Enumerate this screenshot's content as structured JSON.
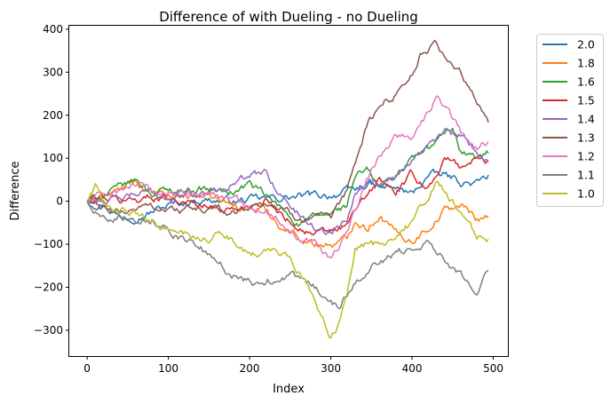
{
  "chart_data": {
    "type": "line",
    "title": "Difference of with Dueling - no Dueling",
    "xlabel": "Index",
    "ylabel": "Difference",
    "xlim": [
      -22,
      518
    ],
    "ylim": [
      -360,
      408
    ],
    "xticks": [
      0,
      100,
      200,
      300,
      400,
      500
    ],
    "yticks": [
      -300,
      -200,
      -100,
      0,
      100,
      200,
      300,
      400
    ],
    "grid": false,
    "legend_position": "outside-right",
    "series": [
      {
        "name": "2.0",
        "color": "#1f77b4",
        "x": [
          0,
          20,
          40,
          70,
          100,
          140,
          180,
          220,
          260,
          300,
          330,
          345,
          360,
          380,
          400,
          420,
          440,
          460,
          480,
          495
        ],
        "y": [
          0,
          -5,
          -35,
          -30,
          -10,
          5,
          0,
          5,
          10,
          15,
          25,
          40,
          30,
          30,
          15,
          60,
          60,
          45,
          40,
          58
        ]
      },
      {
        "name": "1.8",
        "color": "#ff7f0e",
        "x": [
          0,
          20,
          40,
          60,
          80,
          100,
          140,
          180,
          220,
          240,
          260,
          280,
          300,
          320,
          330,
          345,
          360,
          380,
          400,
          420,
          440,
          460,
          480,
          495
        ],
        "y": [
          0,
          10,
          25,
          45,
          15,
          10,
          15,
          -10,
          -20,
          -60,
          -80,
          -100,
          -100,
          -90,
          -40,
          -60,
          -30,
          -75,
          -90,
          -60,
          -20,
          -10,
          -40,
          -30
        ]
      },
      {
        "name": "1.6",
        "color": "#2ca02c",
        "x": [
          0,
          20,
          40,
          60,
          80,
          100,
          140,
          180,
          200,
          220,
          240,
          260,
          280,
          300,
          320,
          330,
          345,
          360,
          380,
          400,
          420,
          440,
          450,
          460,
          480,
          495
        ],
        "y": [
          0,
          15,
          30,
          50,
          20,
          25,
          30,
          20,
          40,
          10,
          -20,
          -50,
          -40,
          -30,
          -10,
          60,
          70,
          30,
          60,
          100,
          120,
          155,
          175,
          120,
          100,
          110
        ]
      },
      {
        "name": "1.5",
        "color": "#d62728",
        "x": [
          0,
          20,
          40,
          60,
          80,
          100,
          140,
          180,
          220,
          240,
          260,
          280,
          300,
          320,
          330,
          345,
          360,
          380,
          400,
          420,
          440,
          460,
          480,
          495
        ],
        "y": [
          0,
          10,
          0,
          5,
          10,
          10,
          -10,
          -20,
          5,
          -30,
          -60,
          -80,
          -70,
          -60,
          -20,
          10,
          50,
          20,
          60,
          30,
          100,
          80,
          100,
          85
        ]
      },
      {
        "name": "1.4",
        "color": "#9467bd",
        "x": [
          0,
          20,
          40,
          60,
          80,
          100,
          140,
          160,
          180,
          200,
          220,
          240,
          260,
          280,
          300,
          320,
          330,
          345,
          360,
          380,
          400,
          420,
          440,
          460,
          480,
          495
        ],
        "y": [
          0,
          5,
          0,
          15,
          20,
          10,
          15,
          30,
          45,
          55,
          70,
          10,
          -30,
          -60,
          -70,
          -40,
          30,
          55,
          40,
          60,
          100,
          130,
          160,
          150,
          110,
          90
        ]
      },
      {
        "name": "1.3",
        "color": "#8c564b",
        "x": [
          0,
          20,
          40,
          60,
          80,
          100,
          140,
          180,
          220,
          240,
          260,
          280,
          300,
          320,
          330,
          345,
          360,
          380,
          400,
          410,
          420,
          430,
          440,
          460,
          480,
          495
        ],
        "y": [
          0,
          -20,
          -30,
          -15,
          -10,
          -20,
          -20,
          -25,
          0,
          -20,
          -40,
          -30,
          -50,
          20,
          90,
          180,
          220,
          250,
          300,
          340,
          350,
          365,
          340,
          300,
          220,
          185
        ]
      },
      {
        "name": "1.2",
        "color": "#e377c2",
        "x": [
          0,
          20,
          40,
          60,
          80,
          100,
          140,
          180,
          220,
          240,
          260,
          280,
          300,
          320,
          330,
          345,
          360,
          380,
          400,
          420,
          430,
          440,
          460,
          480,
          495
        ],
        "y": [
          0,
          15,
          25,
          40,
          15,
          20,
          15,
          5,
          -20,
          -50,
          -80,
          -90,
          -130,
          -80,
          -20,
          50,
          100,
          160,
          150,
          200,
          240,
          220,
          160,
          120,
          140
        ]
      },
      {
        "name": "1.1",
        "color": "#7f7f7f",
        "x": [
          0,
          10,
          20,
          40,
          60,
          80,
          100,
          120,
          140,
          160,
          180,
          200,
          220,
          240,
          260,
          280,
          300,
          310,
          330,
          345,
          360,
          380,
          400,
          420,
          440,
          460,
          480,
          495
        ],
        "y": [
          0,
          -20,
          -40,
          -30,
          -40,
          -40,
          -60,
          -90,
          -110,
          -150,
          -170,
          -190,
          -190,
          -170,
          -180,
          -200,
          -230,
          -250,
          -180,
          -160,
          -140,
          -120,
          -110,
          -90,
          -130,
          -170,
          -200,
          -155
        ]
      },
      {
        "name": "1.0",
        "color": "#bcbd22",
        "x": [
          0,
          10,
          20,
          40,
          60,
          80,
          100,
          120,
          140,
          160,
          180,
          200,
          220,
          240,
          260,
          280,
          290,
          300,
          310,
          320,
          330,
          345,
          360,
          380,
          400,
          420,
          430,
          440,
          460,
          480,
          495
        ],
        "y": [
          0,
          40,
          -10,
          -20,
          -30,
          -50,
          -70,
          -80,
          -90,
          -80,
          -90,
          -120,
          -120,
          -120,
          -160,
          -230,
          -270,
          -320,
          -280,
          -220,
          -120,
          -100,
          -100,
          -80,
          -50,
          10,
          40,
          20,
          -30,
          -80,
          -90
        ]
      }
    ]
  }
}
